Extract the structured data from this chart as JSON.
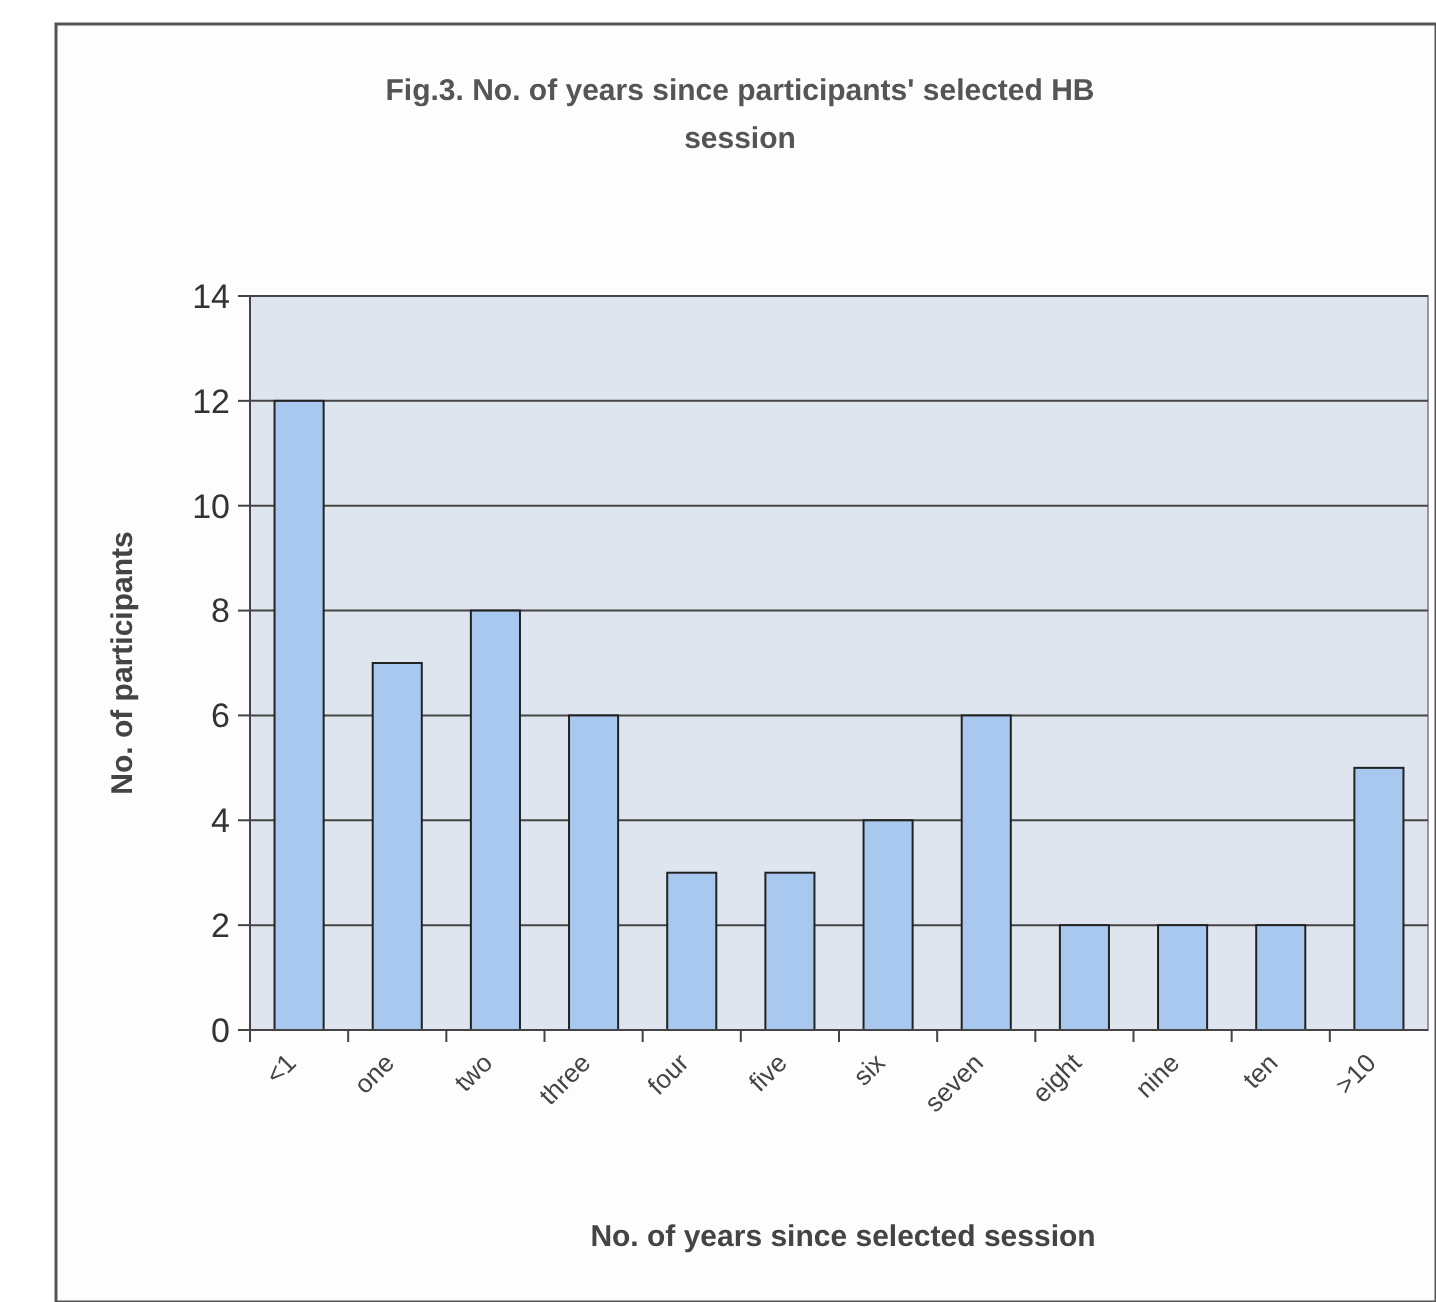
{
  "chart_data": {
    "type": "bar",
    "title": "Fig.3. No. of years since participants' selected HB session",
    "xlabel": "No. of years since selected session",
    "ylabel": "No. of participants",
    "categories": [
      "<1",
      "one",
      "two",
      "three",
      "four",
      "five",
      "six",
      "seven",
      "eight",
      "nine",
      "ten",
      ">10"
    ],
    "values": [
      12,
      7,
      8,
      6,
      3,
      3,
      4,
      6,
      2,
      2,
      2,
      5
    ],
    "color": "#a8c8f0",
    "ylim": [
      0,
      14
    ],
    "yticks": [
      0,
      2,
      4,
      6,
      8,
      10,
      12,
      14
    ],
    "grid": "y"
  }
}
